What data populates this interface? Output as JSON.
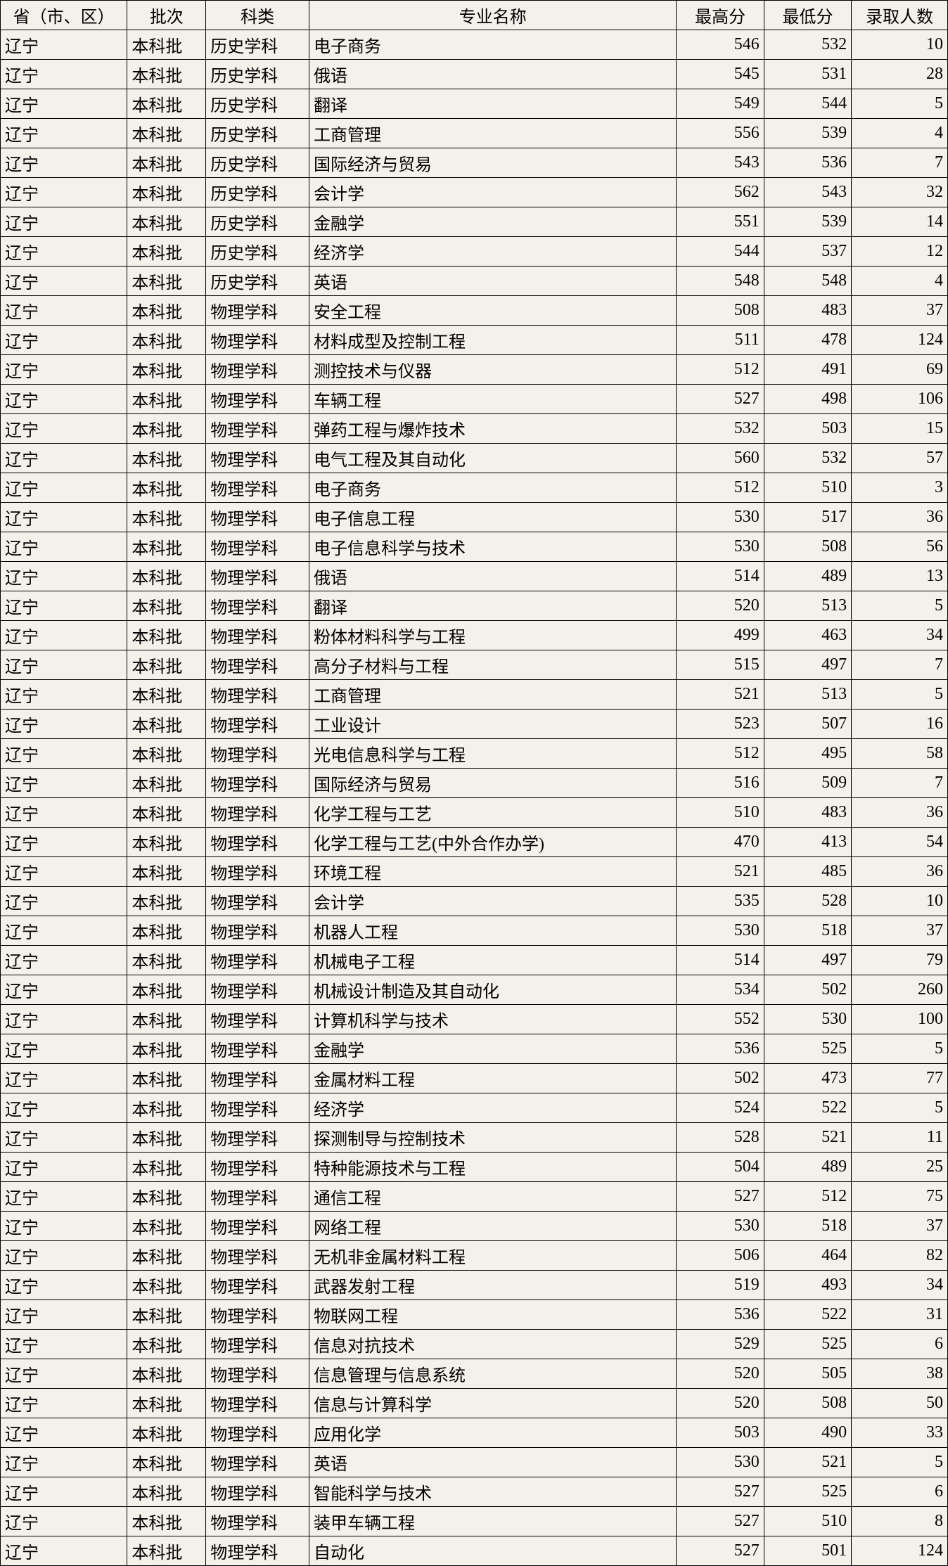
{
  "columns": [
    "省（市、区）",
    "批次",
    "科类",
    "专业名称",
    "最高分",
    "最低分",
    "录取人数"
  ],
  "rows": [
    {
      "province": "辽宁",
      "batch": "本科批",
      "subject": "历史学科",
      "major": "电子商务",
      "high": 546,
      "low": 532,
      "count": 10
    },
    {
      "province": "辽宁",
      "batch": "本科批",
      "subject": "历史学科",
      "major": "俄语",
      "high": 545,
      "low": 531,
      "count": 28
    },
    {
      "province": "辽宁",
      "batch": "本科批",
      "subject": "历史学科",
      "major": "翻译",
      "high": 549,
      "low": 544,
      "count": 5
    },
    {
      "province": "辽宁",
      "batch": "本科批",
      "subject": "历史学科",
      "major": "工商管理",
      "high": 556,
      "low": 539,
      "count": 4
    },
    {
      "province": "辽宁",
      "batch": "本科批",
      "subject": "历史学科",
      "major": "国际经济与贸易",
      "high": 543,
      "low": 536,
      "count": 7
    },
    {
      "province": "辽宁",
      "batch": "本科批",
      "subject": "历史学科",
      "major": "会计学",
      "high": 562,
      "low": 543,
      "count": 32
    },
    {
      "province": "辽宁",
      "batch": "本科批",
      "subject": "历史学科",
      "major": "金融学",
      "high": 551,
      "low": 539,
      "count": 14
    },
    {
      "province": "辽宁",
      "batch": "本科批",
      "subject": "历史学科",
      "major": "经济学",
      "high": 544,
      "low": 537,
      "count": 12
    },
    {
      "province": "辽宁",
      "batch": "本科批",
      "subject": "历史学科",
      "major": "英语",
      "high": 548,
      "low": 548,
      "count": 4
    },
    {
      "province": "辽宁",
      "batch": "本科批",
      "subject": "物理学科",
      "major": "安全工程",
      "high": 508,
      "low": 483,
      "count": 37
    },
    {
      "province": "辽宁",
      "batch": "本科批",
      "subject": "物理学科",
      "major": "材料成型及控制工程",
      "high": 511,
      "low": 478,
      "count": 124
    },
    {
      "province": "辽宁",
      "batch": "本科批",
      "subject": "物理学科",
      "major": "测控技术与仪器",
      "high": 512,
      "low": 491,
      "count": 69
    },
    {
      "province": "辽宁",
      "batch": "本科批",
      "subject": "物理学科",
      "major": "车辆工程",
      "high": 527,
      "low": 498,
      "count": 106
    },
    {
      "province": "辽宁",
      "batch": "本科批",
      "subject": "物理学科",
      "major": "弹药工程与爆炸技术",
      "high": 532,
      "low": 503,
      "count": 15
    },
    {
      "province": "辽宁",
      "batch": "本科批",
      "subject": "物理学科",
      "major": "电气工程及其自动化",
      "high": 560,
      "low": 532,
      "count": 57
    },
    {
      "province": "辽宁",
      "batch": "本科批",
      "subject": "物理学科",
      "major": "电子商务",
      "high": 512,
      "low": 510,
      "count": 3
    },
    {
      "province": "辽宁",
      "batch": "本科批",
      "subject": "物理学科",
      "major": "电子信息工程",
      "high": 530,
      "low": 517,
      "count": 36
    },
    {
      "province": "辽宁",
      "batch": "本科批",
      "subject": "物理学科",
      "major": "电子信息科学与技术",
      "high": 530,
      "low": 508,
      "count": 56
    },
    {
      "province": "辽宁",
      "batch": "本科批",
      "subject": "物理学科",
      "major": "俄语",
      "high": 514,
      "low": 489,
      "count": 13
    },
    {
      "province": "辽宁",
      "batch": "本科批",
      "subject": "物理学科",
      "major": "翻译",
      "high": 520,
      "low": 513,
      "count": 5
    },
    {
      "province": "辽宁",
      "batch": "本科批",
      "subject": "物理学科",
      "major": "粉体材料科学与工程",
      "high": 499,
      "low": 463,
      "count": 34
    },
    {
      "province": "辽宁",
      "batch": "本科批",
      "subject": "物理学科",
      "major": "高分子材料与工程",
      "high": 515,
      "low": 497,
      "count": 7
    },
    {
      "province": "辽宁",
      "batch": "本科批",
      "subject": "物理学科",
      "major": "工商管理",
      "high": 521,
      "low": 513,
      "count": 5
    },
    {
      "province": "辽宁",
      "batch": "本科批",
      "subject": "物理学科",
      "major": "工业设计",
      "high": 523,
      "low": 507,
      "count": 16
    },
    {
      "province": "辽宁",
      "batch": "本科批",
      "subject": "物理学科",
      "major": "光电信息科学与工程",
      "high": 512,
      "low": 495,
      "count": 58
    },
    {
      "province": "辽宁",
      "batch": "本科批",
      "subject": "物理学科",
      "major": "国际经济与贸易",
      "high": 516,
      "low": 509,
      "count": 7
    },
    {
      "province": "辽宁",
      "batch": "本科批",
      "subject": "物理学科",
      "major": "化学工程与工艺",
      "high": 510,
      "low": 483,
      "count": 36
    },
    {
      "province": "辽宁",
      "batch": "本科批",
      "subject": "物理学科",
      "major": "化学工程与工艺(中外合作办学)",
      "high": 470,
      "low": 413,
      "count": 54
    },
    {
      "province": "辽宁",
      "batch": "本科批",
      "subject": "物理学科",
      "major": "环境工程",
      "high": 521,
      "low": 485,
      "count": 36
    },
    {
      "province": "辽宁",
      "batch": "本科批",
      "subject": "物理学科",
      "major": "会计学",
      "high": 535,
      "low": 528,
      "count": 10
    },
    {
      "province": "辽宁",
      "batch": "本科批",
      "subject": "物理学科",
      "major": "机器人工程",
      "high": 530,
      "low": 518,
      "count": 37
    },
    {
      "province": "辽宁",
      "batch": "本科批",
      "subject": "物理学科",
      "major": "机械电子工程",
      "high": 514,
      "low": 497,
      "count": 79
    },
    {
      "province": "辽宁",
      "batch": "本科批",
      "subject": "物理学科",
      "major": "机械设计制造及其自动化",
      "high": 534,
      "low": 502,
      "count": 260
    },
    {
      "province": "辽宁",
      "batch": "本科批",
      "subject": "物理学科",
      "major": "计算机科学与技术",
      "high": 552,
      "low": 530,
      "count": 100
    },
    {
      "province": "辽宁",
      "batch": "本科批",
      "subject": "物理学科",
      "major": "金融学",
      "high": 536,
      "low": 525,
      "count": 5
    },
    {
      "province": "辽宁",
      "batch": "本科批",
      "subject": "物理学科",
      "major": "金属材料工程",
      "high": 502,
      "low": 473,
      "count": 77
    },
    {
      "province": "辽宁",
      "batch": "本科批",
      "subject": "物理学科",
      "major": "经济学",
      "high": 524,
      "low": 522,
      "count": 5
    },
    {
      "province": "辽宁",
      "batch": "本科批",
      "subject": "物理学科",
      "major": "探测制导与控制技术",
      "high": 528,
      "low": 521,
      "count": 11
    },
    {
      "province": "辽宁",
      "batch": "本科批",
      "subject": "物理学科",
      "major": "特种能源技术与工程",
      "high": 504,
      "low": 489,
      "count": 25
    },
    {
      "province": "辽宁",
      "batch": "本科批",
      "subject": "物理学科",
      "major": "通信工程",
      "high": 527,
      "low": 512,
      "count": 75
    },
    {
      "province": "辽宁",
      "batch": "本科批",
      "subject": "物理学科",
      "major": "网络工程",
      "high": 530,
      "low": 518,
      "count": 37
    },
    {
      "province": "辽宁",
      "batch": "本科批",
      "subject": "物理学科",
      "major": "无机非金属材料工程",
      "high": 506,
      "low": 464,
      "count": 82
    },
    {
      "province": "辽宁",
      "batch": "本科批",
      "subject": "物理学科",
      "major": "武器发射工程",
      "high": 519,
      "low": 493,
      "count": 34
    },
    {
      "province": "辽宁",
      "batch": "本科批",
      "subject": "物理学科",
      "major": "物联网工程",
      "high": 536,
      "low": 522,
      "count": 31
    },
    {
      "province": "辽宁",
      "batch": "本科批",
      "subject": "物理学科",
      "major": "信息对抗技术",
      "high": 529,
      "low": 525,
      "count": 6
    },
    {
      "province": "辽宁",
      "batch": "本科批",
      "subject": "物理学科",
      "major": "信息管理与信息系统",
      "high": 520,
      "low": 505,
      "count": 38
    },
    {
      "province": "辽宁",
      "batch": "本科批",
      "subject": "物理学科",
      "major": "信息与计算科学",
      "high": 520,
      "low": 508,
      "count": 50
    },
    {
      "province": "辽宁",
      "batch": "本科批",
      "subject": "物理学科",
      "major": "应用化学",
      "high": 503,
      "low": 490,
      "count": 33
    },
    {
      "province": "辽宁",
      "batch": "本科批",
      "subject": "物理学科",
      "major": "英语",
      "high": 530,
      "low": 521,
      "count": 5
    },
    {
      "province": "辽宁",
      "batch": "本科批",
      "subject": "物理学科",
      "major": "智能科学与技术",
      "high": 527,
      "low": 525,
      "count": 6
    },
    {
      "province": "辽宁",
      "batch": "本科批",
      "subject": "物理学科",
      "major": "装甲车辆工程",
      "high": 527,
      "low": 510,
      "count": 8
    },
    {
      "province": "辽宁",
      "batch": "本科批",
      "subject": "物理学科",
      "major": "自动化",
      "high": 527,
      "low": 501,
      "count": 124
    }
  ]
}
